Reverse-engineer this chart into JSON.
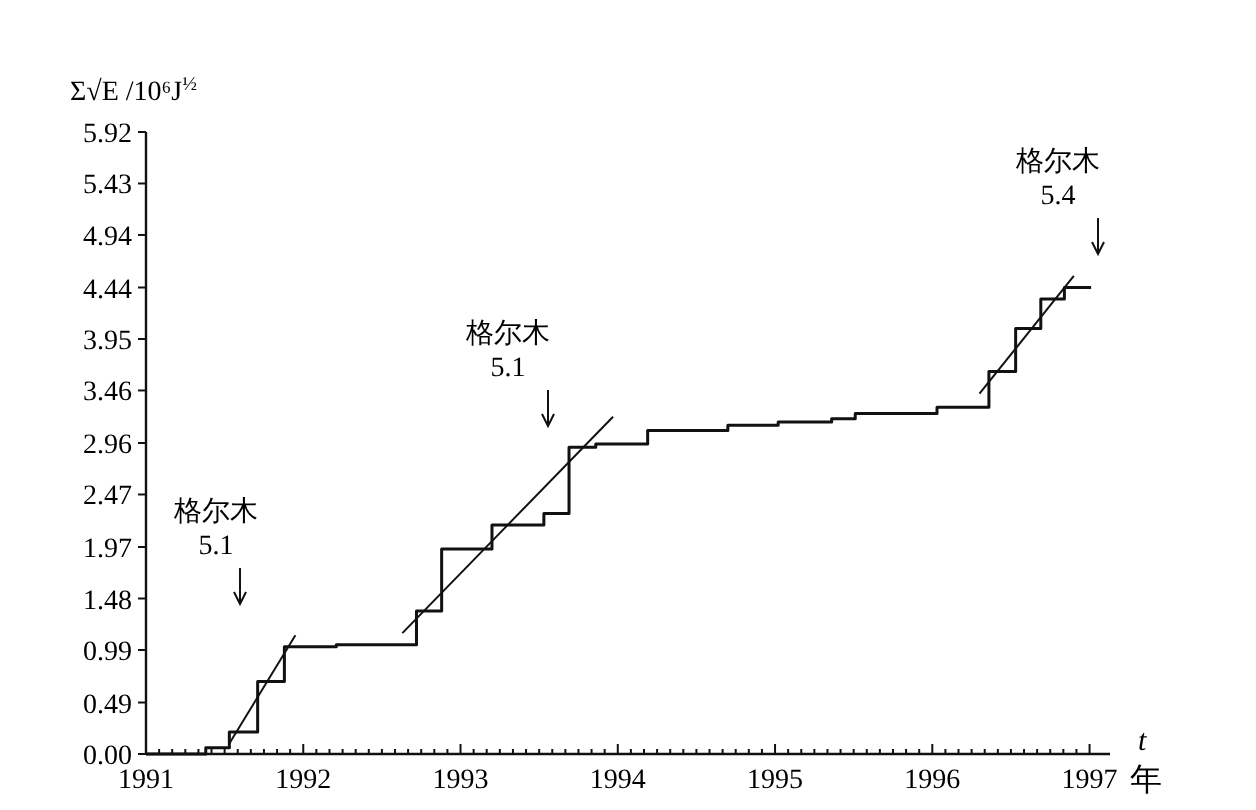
{
  "chart_data": {
    "type": "step",
    "ylabel": "Σ√E /10⁶J$^{½}$",
    "xlabel": "t",
    "xlim": [
      1991,
      1997.13
    ],
    "xticks": [
      1991,
      1992,
      1993,
      1994,
      1995,
      1996,
      1997
    ],
    "ylim": [
      0,
      5.92
    ],
    "yticks": [
      {
        "value": 0,
        "label": "0.00"
      },
      0.49,
      0.99,
      1.48,
      1.97,
      2.47,
      2.96,
      3.46,
      3.95,
      4.44,
      4.94,
      5.43,
      5.92
    ],
    "marker": "none",
    "series": [
      {
        "color": "#111111",
        "x": [
          1991.0,
          1991.38,
          1991.53,
          1991.71,
          1991.88,
          1992.21,
          1992.72,
          1992.88,
          1993.2,
          1993.53,
          1993.69,
          1993.86,
          1994.19,
          1994.7,
          1995.02,
          1995.36,
          1995.51,
          1996.03,
          1996.36,
          1996.53,
          1996.69,
          1996.84,
          1997.01
        ],
        "values": [
          0,
          0.06,
          0.21,
          0.69,
          1.02,
          1.04,
          1.36,
          1.95,
          2.18,
          2.29,
          2.92,
          2.95,
          3.08,
          3.13,
          3.16,
          3.19,
          3.24,
          3.3,
          3.64,
          4.05,
          4.33,
          4.44,
          4.44
        ]
      },
      {
        "type": "line",
        "color": "#111111",
        "x": [
          1991.53,
          1991.95
        ],
        "values": [
          0.1,
          1.13
        ]
      },
      {
        "type": "line",
        "color": "#111111",
        "x": [
          1992.63,
          1993.97
        ],
        "values": [
          1.15,
          3.21
        ]
      },
      {
        "type": "line",
        "color": "#111111",
        "x": [
          1996.3,
          1996.9
        ],
        "values": [
          3.43,
          4.55
        ]
      }
    ],
    "annotations": [
      "格尔木\n5.1",
      "格尔木\n5.1",
      "格尔木\n5.4",
      "年"
    ]
  }
}
